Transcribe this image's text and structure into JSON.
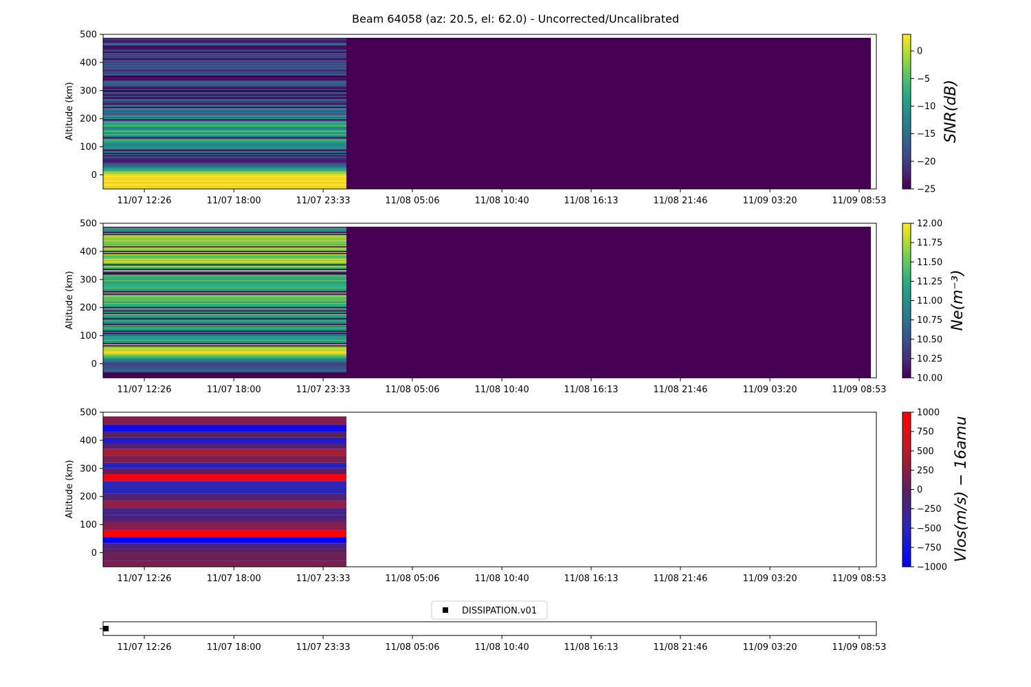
{
  "chart_data": {
    "title": "Beam 64058 (az: 20.5, el: 62.0) - Uncorrected/Uncalibrated",
    "x_tick_labels": [
      "11/07 12:26",
      "11/07 18:00",
      "11/07 23:33",
      "11/08 05:06",
      "11/08 10:40",
      "11/08 16:13",
      "11/08 21:46",
      "11/09 03:20",
      "11/09 08:53"
    ],
    "panels": [
      {
        "type": "heatmap",
        "ylabel": "Altitude (km)",
        "yticks": [
          "0",
          "100",
          "200",
          "300",
          "400",
          "500"
        ],
        "ylim": [
          -50,
          500
        ],
        "colorbar": {
          "label": "SNR(dB)",
          "colormap": "viridis",
          "range": [
            -25,
            3
          ],
          "ticks": [
            "0",
            "−5",
            "−10",
            "−15",
            "−20",
            "−25"
          ]
        },
        "data_extent": {
          "x_end": "11/08 01:00",
          "y_range": [
            -50,
            485
          ]
        },
        "background_extent": {
          "x_end": "11/09 09:20",
          "y_range": [
            -50,
            485
          ]
        },
        "profile": {
          "altitudes": [
            -50,
            0,
            50,
            100,
            150,
            200,
            250,
            300,
            350,
            400,
            450,
            485
          ],
          "values": [
            3,
            3,
            -24,
            -8,
            -7,
            -12,
            -16,
            -18,
            -18,
            -19,
            -19,
            -20
          ]
        }
      },
      {
        "type": "heatmap",
        "ylabel": "Altitude (km)",
        "yticks": [
          "0",
          "100",
          "200",
          "300",
          "400",
          "500"
        ],
        "ylim": [
          -50,
          500
        ],
        "colorbar": {
          "label": "Ne(m⁻³)",
          "colormap": "viridis",
          "range": [
            10,
            12
          ],
          "ticks": [
            "12.00",
            "11.75",
            "11.50",
            "11.25",
            "11.00",
            "10.75",
            "10.50",
            "10.25",
            "10.00"
          ]
        },
        "data_extent": {
          "x_end": "11/08 01:00",
          "y_range": [
            -30,
            485
          ]
        },
        "background_extent": {
          "x_end": "11/09 09:20",
          "y_range": [
            -50,
            485
          ]
        },
        "profile": {
          "altitudes": [
            -30,
            0,
            40,
            100,
            150,
            200,
            250,
            300,
            350,
            400,
            450,
            485
          ],
          "values": [
            10.7,
            10.4,
            12,
            11.0,
            11.2,
            11.3,
            11.4,
            11.3,
            11.6,
            11.7,
            11.7,
            11.0
          ]
        }
      },
      {
        "type": "heatmap",
        "ylabel": "Altitude (km)",
        "yticks": [
          "0",
          "100",
          "200",
          "300",
          "400",
          "500"
        ],
        "ylim": [
          -50,
          500
        ],
        "colorbar": {
          "label": "Vlos(m/s) − 16amu",
          "colormap": "blue-purple-red",
          "range": [
            -1000,
            1000
          ],
          "ticks": [
            "1000",
            "750",
            "500",
            "250",
            "0",
            "−250",
            "−500",
            "−750",
            "−1000"
          ]
        },
        "data_extent": {
          "x_end": "11/08 01:00",
          "y_range": [
            -50,
            485
          ]
        },
        "levels": [
          {
            "from": -50,
            "to": -30,
            "value": 150
          },
          {
            "from": -30,
            "to": 0,
            "value": 100
          },
          {
            "from": 0,
            "to": 15,
            "value": 0
          },
          {
            "from": 15,
            "to": 35,
            "value": -200
          },
          {
            "from": 35,
            "to": 55,
            "value": -1000
          },
          {
            "from": 55,
            "to": 80,
            "value": 1000
          },
          {
            "from": 80,
            "to": 110,
            "value": 200
          },
          {
            "from": 110,
            "to": 135,
            "value": -150
          },
          {
            "from": 135,
            "to": 160,
            "value": -250
          },
          {
            "from": 160,
            "to": 185,
            "value": 300
          },
          {
            "from": 185,
            "to": 210,
            "value": -100
          },
          {
            "from": 210,
            "to": 255,
            "value": -500
          },
          {
            "from": 255,
            "to": 280,
            "value": 900
          },
          {
            "from": 280,
            "to": 300,
            "value": 0
          },
          {
            "from": 300,
            "to": 320,
            "value": -550
          },
          {
            "from": 320,
            "to": 345,
            "value": 150
          },
          {
            "from": 345,
            "to": 370,
            "value": 400
          },
          {
            "from": 370,
            "to": 390,
            "value": -100
          },
          {
            "from": 390,
            "to": 410,
            "value": -600
          },
          {
            "from": 410,
            "to": 430,
            "value": 0
          },
          {
            "from": 430,
            "to": 455,
            "value": -850
          },
          {
            "from": 455,
            "to": 485,
            "value": 200
          }
        ]
      }
    ],
    "strip": {
      "legend": "DISSIPATION.v01",
      "marker": "square",
      "marker_color": "#000000",
      "points": [
        {
          "x": "11/07 09:40"
        }
      ]
    }
  }
}
